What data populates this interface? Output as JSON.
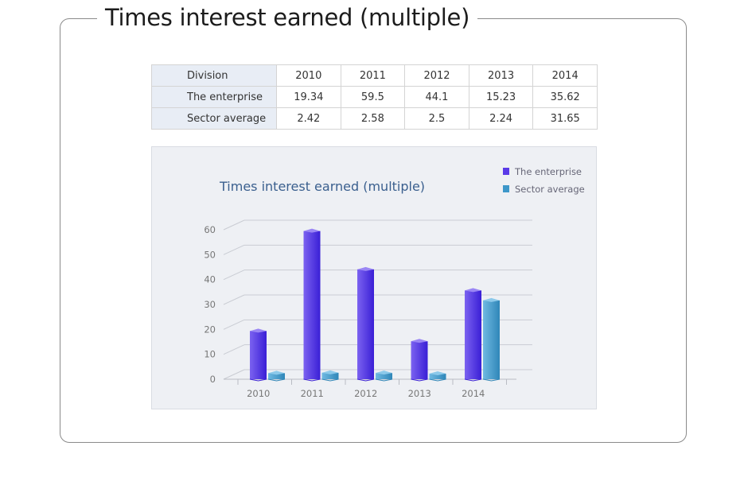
{
  "page": {
    "title": "Times interest earned (multiple)"
  },
  "table": {
    "header": [
      "Division",
      "2010",
      "2011",
      "2012",
      "2013",
      "2014"
    ],
    "rows": [
      {
        "label": "The enterprise",
        "values": [
          "19.34",
          "59.5",
          "44.1",
          "15.23",
          "35.62"
        ]
      },
      {
        "label": "Sector average",
        "values": [
          "2.42",
          "2.58",
          "2.5",
          "2.24",
          "31.65"
        ]
      }
    ]
  },
  "chart_data": {
    "type": "bar",
    "title": "Times interest earned (multiple)",
    "categories": [
      "2010",
      "2011",
      "2012",
      "2013",
      "2014"
    ],
    "series": [
      {
        "name": "The enterprise",
        "values": [
          19.34,
          59.5,
          44.1,
          15.23,
          35.62
        ],
        "color": "#5a3ae8"
      },
      {
        "name": "Sector average",
        "values": [
          2.42,
          2.58,
          2.5,
          2.24,
          31.65
        ],
        "color": "#3d97c9"
      }
    ],
    "ylim": [
      0,
      60
    ],
    "yticks": [
      "0",
      "10",
      "20",
      "30",
      "40",
      "50",
      "60"
    ],
    "grid": true,
    "legend_position": "top-right",
    "xlabel": "",
    "ylabel": ""
  }
}
